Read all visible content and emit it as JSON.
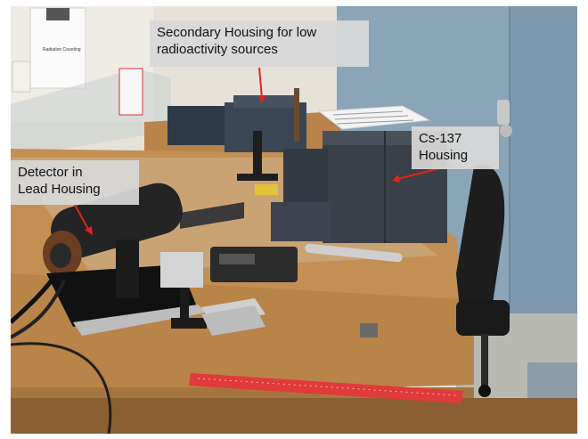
{
  "image": {
    "description_labels": {
      "sign_text": "Radiation Counting"
    }
  },
  "annotations": [
    {
      "id": "secondary-housing",
      "lines": [
        "Secondary Housing for low",
        "radioactivity sources"
      ]
    },
    {
      "id": "cs137-housing",
      "lines": [
        "Cs-137",
        "Housing"
      ]
    },
    {
      "id": "detector-housing",
      "lines": [
        "Detector in",
        "Lead Housing"
      ]
    }
  ],
  "colors": {
    "arrow": "#e0251b",
    "callout_bg": "#d8d8d8",
    "wall_blue": "#8aa4b8",
    "table_wood": "#b8844a",
    "lead_block": "#3a3f48",
    "ruler": "#e03a3a"
  }
}
